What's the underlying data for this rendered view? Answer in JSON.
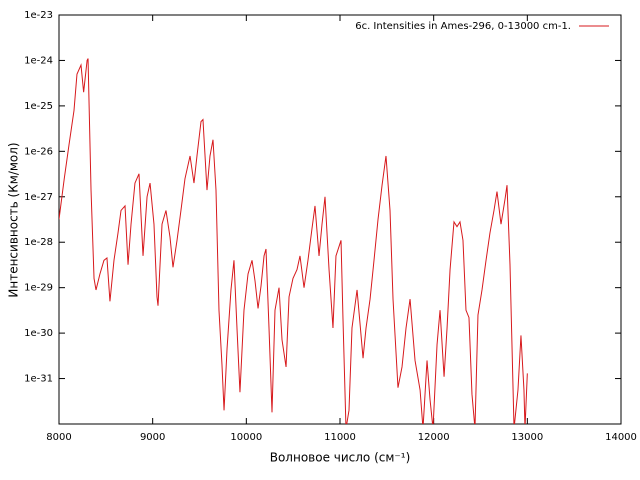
{
  "chart_data": {
    "type": "line",
    "x_label": "Волновое число (см⁻¹)",
    "y_label": "Интенсивность (Км/мол)",
    "xlim": [
      8000,
      14000
    ],
    "xticks": [
      8000,
      9000,
      10000,
      11000,
      12000,
      13000,
      14000
    ],
    "ylim": [
      1e-32,
      1e-23
    ],
    "yticks": [
      1e-31,
      1e-30,
      1e-29,
      1e-28,
      1e-27,
      1e-26,
      1e-25,
      1e-24,
      1e-23
    ],
    "log_y": true,
    "legend": "top-right",
    "x": [
      8000,
      8056,
      8107,
      8160,
      8192,
      8235,
      8263,
      8300,
      8310,
      8342,
      8374,
      8395,
      8437,
      8480,
      8512,
      8544,
      8587,
      8630,
      8662,
      8705,
      8737,
      8769,
      8811,
      8854,
      8897,
      8940,
      8972,
      9014,
      9046,
      9057,
      9100,
      9142,
      9185,
      9217,
      9260,
      9302,
      9345,
      9399,
      9441,
      9473,
      9516,
      9537,
      9580,
      9612,
      9644,
      9676,
      9708,
      9740,
      9762,
      9794,
      9836,
      9868,
      9900,
      9932,
      9975,
      10018,
      10061,
      10093,
      10125,
      10157,
      10189,
      10210,
      10242,
      10274,
      10306,
      10349,
      10381,
      10424,
      10456,
      10498,
      10541,
      10573,
      10616,
      10658,
      10701,
      10733,
      10776,
      10808,
      10840,
      10883,
      10925,
      10957,
      11011,
      11032,
      11064,
      11096,
      11128,
      11182,
      11214,
      11246,
      11278,
      11321,
      11363,
      11406,
      11449,
      11491,
      11534,
      11566,
      11619,
      11662,
      11705,
      11748,
      11801,
      11855,
      11886,
      11929,
      11961,
      11993,
      12036,
      12068,
      12111,
      12143,
      12175,
      12217,
      12249,
      12281,
      12313,
      12345,
      12377,
      12409,
      12441,
      12473,
      12516,
      12559,
      12601,
      12644,
      12676,
      12719,
      12762,
      12783,
      12815,
      12858,
      12900,
      12932,
      12964,
      12975,
      13000
    ],
    "series": [
      {
        "name": "6c. Intensities in Ames-296, 0-13000 cm-1.",
        "color": "#d7191c",
        "values": [
          3.2e-28,
          2.5e-27,
          1.4e-26,
          7.9e-26,
          5e-25,
          7.9e-25,
          2e-25,
          1e-24,
          1.1e-24,
          1.4e-27,
          1.6e-29,
          8.9e-30,
          2e-29,
          4e-29,
          4.5e-29,
          5e-30,
          4e-29,
          1.6e-28,
          5e-28,
          6.3e-28,
          3.2e-29,
          2.5e-28,
          2e-27,
          3.2e-27,
          5e-29,
          1e-27,
          2e-27,
          2.5e-28,
          6.3e-30,
          4e-30,
          2.5e-28,
          5e-28,
          1.3e-28,
          2.8e-29,
          1.1e-28,
          5e-28,
          2.5e-27,
          7.9e-27,
          2e-27,
          7.9e-27,
          4.5e-26,
          5e-26,
          1.4e-27,
          7.9e-27,
          1.8e-26,
          1.4e-27,
          3.2e-30,
          2e-31,
          2e-32,
          4.5e-31,
          8.9e-30,
          4e-29,
          1.3e-30,
          5e-32,
          3.2e-30,
          2e-29,
          4e-29,
          1.4e-29,
          3.5e-30,
          1.1e-29,
          5e-29,
          7.1e-29,
          1.3e-30,
          1.8e-32,
          3.2e-30,
          1e-29,
          7.1e-31,
          1.8e-31,
          6.3e-30,
          1.6e-29,
          2.5e-29,
          5e-29,
          1e-29,
          4e-29,
          2e-28,
          6.3e-28,
          5e-29,
          2.5e-28,
          1e-27,
          2.5e-29,
          1.3e-30,
          5e-29,
          1.1e-28,
          2e-30,
          7.9e-33,
          2e-32,
          1.3e-30,
          8.9e-30,
          1.6e-30,
          2.8e-31,
          1.3e-30,
          5.6e-30,
          4e-29,
          3.2e-28,
          1.8e-27,
          7.9e-27,
          5e-28,
          5.6e-30,
          6.3e-32,
          1.8e-31,
          1.3e-30,
          5.6e-30,
          2.5e-31,
          5.6e-32,
          7.9e-33,
          2.5e-31,
          3.5e-32,
          7.9e-33,
          5.6e-31,
          3.2e-30,
          1.1e-31,
          1.3e-30,
          2.5e-29,
          2.8e-28,
          2.2e-28,
          2.8e-28,
          1.1e-28,
          3.2e-30,
          2.2e-30,
          4.5e-32,
          7.9e-33,
          2.5e-30,
          8.9e-30,
          4e-29,
          1.6e-28,
          5e-28,
          1.3e-27,
          2.5e-28,
          8.9e-28,
          1.8e-27,
          3.2e-29,
          7.9e-33,
          5.6e-32,
          8.9e-31,
          5.6e-32,
          7.9e-33,
          1.3e-31
        ]
      }
    ]
  }
}
